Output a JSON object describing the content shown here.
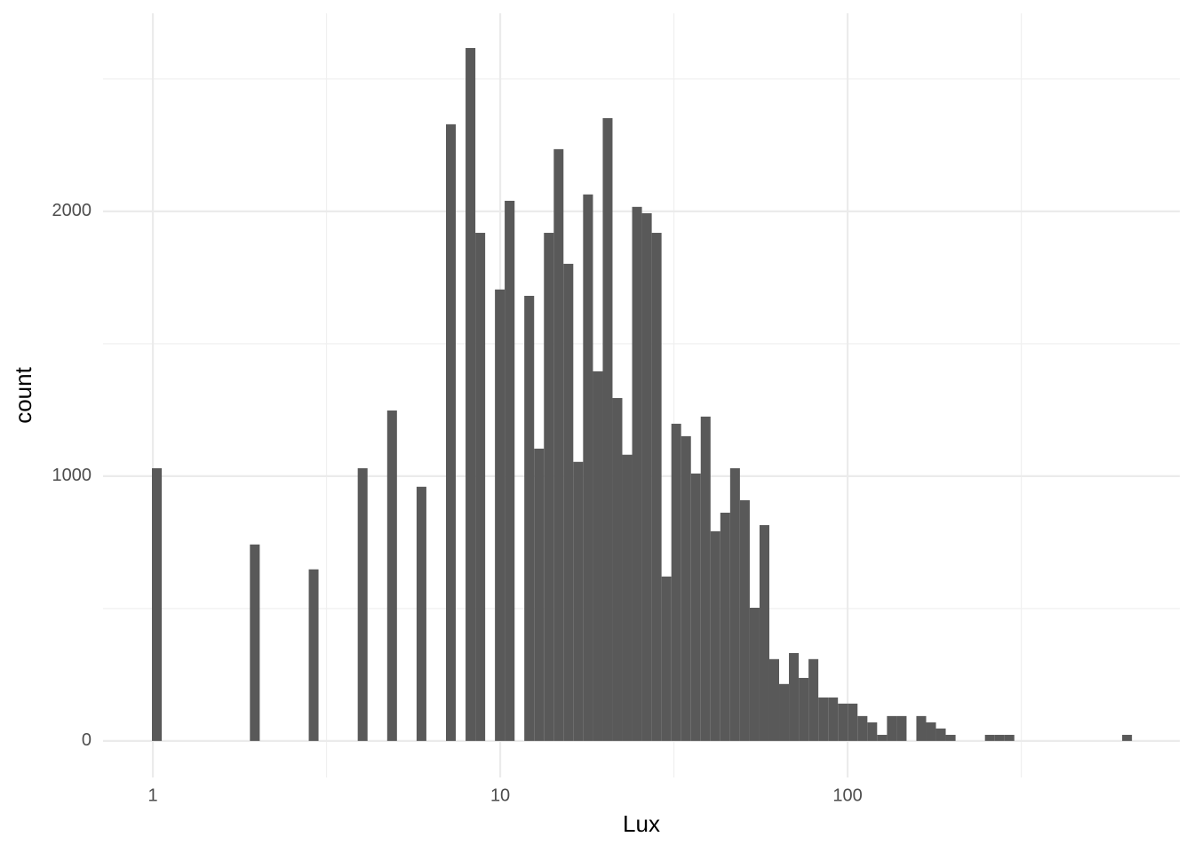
{
  "chart_data": {
    "type": "histogram",
    "x_label": "Lux",
    "y_label": "count",
    "xscale": "log",
    "bins": [
      0.994,
      1.061,
      1.132,
      1.208,
      1.289,
      1.375,
      1.468,
      1.566,
      1.672,
      1.784,
      1.903,
      2.031,
      2.167,
      2.313,
      2.468,
      2.634,
      2.811,
      2.999,
      3.201,
      3.415,
      3.645,
      3.889,
      4.15,
      4.429,
      4.727,
      5.044,
      5.383,
      5.744,
      6.129,
      6.541,
      6.98,
      7.448,
      7.948,
      8.482,
      9.051,
      9.656,
      10.3,
      11.0,
      11.73,
      12.52,
      13.36,
      14.26,
      15.21,
      16.23,
      17.32,
      18.49,
      19.73,
      21.05,
      22.46,
      23.97,
      25.58,
      27.3,
      29.13,
      31.09,
      33.17,
      35.4,
      37.77,
      40.31,
      43.01,
      45.9,
      48.98,
      52.27,
      55.78,
      59.52,
      63.51,
      67.77,
      72.33,
      77.19,
      82.36,
      87.89,
      93.78,
      100.1,
      106.8,
      114.0,
      121.6,
      129.8,
      138.5,
      147.8,
      157.7,
      168.3,
      179.6,
      191.6,
      204.5,
      218.2,
      232.8,
      248.5,
      265.2,
      282.9,
      301.9,
      322.2,
      343.8,
      366.9,
      391.5,
      417.8,
      445.8,
      475.7,
      507.7,
      541.8,
      578.1,
      616.9,
      658.3
    ],
    "values": [
      1030,
      0,
      0,
      0,
      0,
      0,
      0,
      0,
      0,
      0,
      742,
      0,
      0,
      0,
      0,
      0,
      648,
      0,
      0,
      0,
      0,
      1030,
      0,
      0,
      1248,
      0,
      0,
      960,
      0,
      0,
      2329,
      0,
      2617,
      1919,
      0,
      1705,
      2040,
      0,
      1681,
      1104,
      1919,
      2235,
      1802,
      1054,
      2064,
      1396,
      2352,
      1295,
      1081,
      2017,
      1993,
      1919,
      621,
      1198,
      1151,
      1010,
      1225,
      792,
      862,
      1030,
      909,
      503,
      815,
      309,
      215,
      332,
      238,
      309,
      164,
      164,
      141,
      141,
      94,
      70,
      23,
      94,
      94,
      0,
      94,
      70,
      47,
      23,
      0,
      0,
      0,
      23,
      23,
      23,
      0,
      0,
      0,
      0,
      0,
      0,
      0,
      0,
      0,
      0,
      0,
      23
    ],
    "color": "#595959",
    "xlim": [
      0.719,
      904
    ],
    "ylim": [
      -138,
      2748
    ],
    "xticks": [
      1,
      10,
      100
    ],
    "yticks": [
      0,
      1000,
      2000
    ],
    "xminor": [
      3.162,
      31.62,
      316.2
    ],
    "yminor": [
      500,
      1500,
      2500
    ],
    "grid": true
  }
}
